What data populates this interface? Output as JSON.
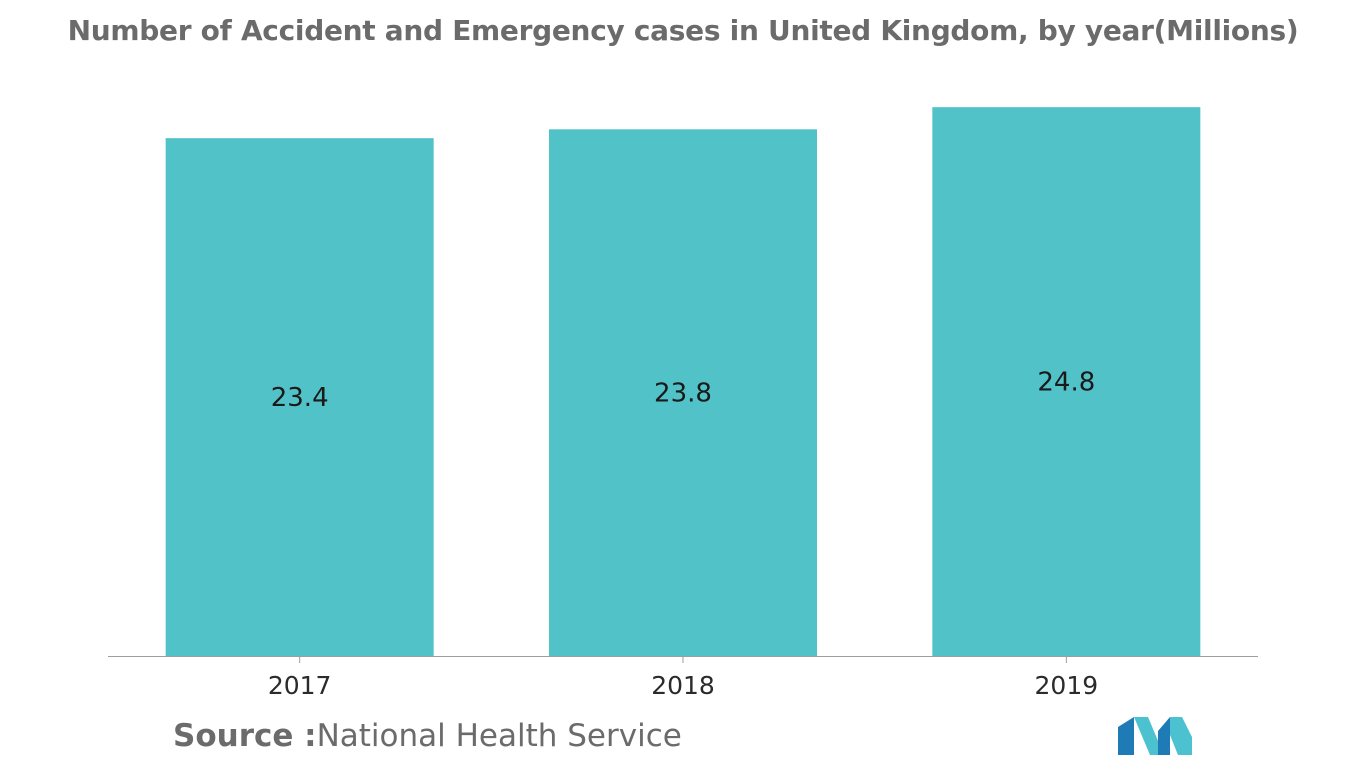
{
  "chart_data": {
    "type": "bar",
    "title": "Number of Accident and Emergency cases in United Kingdom, by year(Millions)",
    "categories": [
      "2017",
      "2018",
      "2019"
    ],
    "values": [
      23.4,
      23.8,
      24.8
    ],
    "xlabel": "",
    "ylabel": "",
    "grid": false,
    "bar_color": "#52c2c9",
    "axis_color": "#9e9e9e"
  },
  "source": {
    "prefix": "Source :",
    "name": "National Health Service"
  },
  "colors": {
    "title": "#6b6b6b",
    "logo_dark": "#1f7bb6",
    "logo_light": "#4cc1cf"
  }
}
